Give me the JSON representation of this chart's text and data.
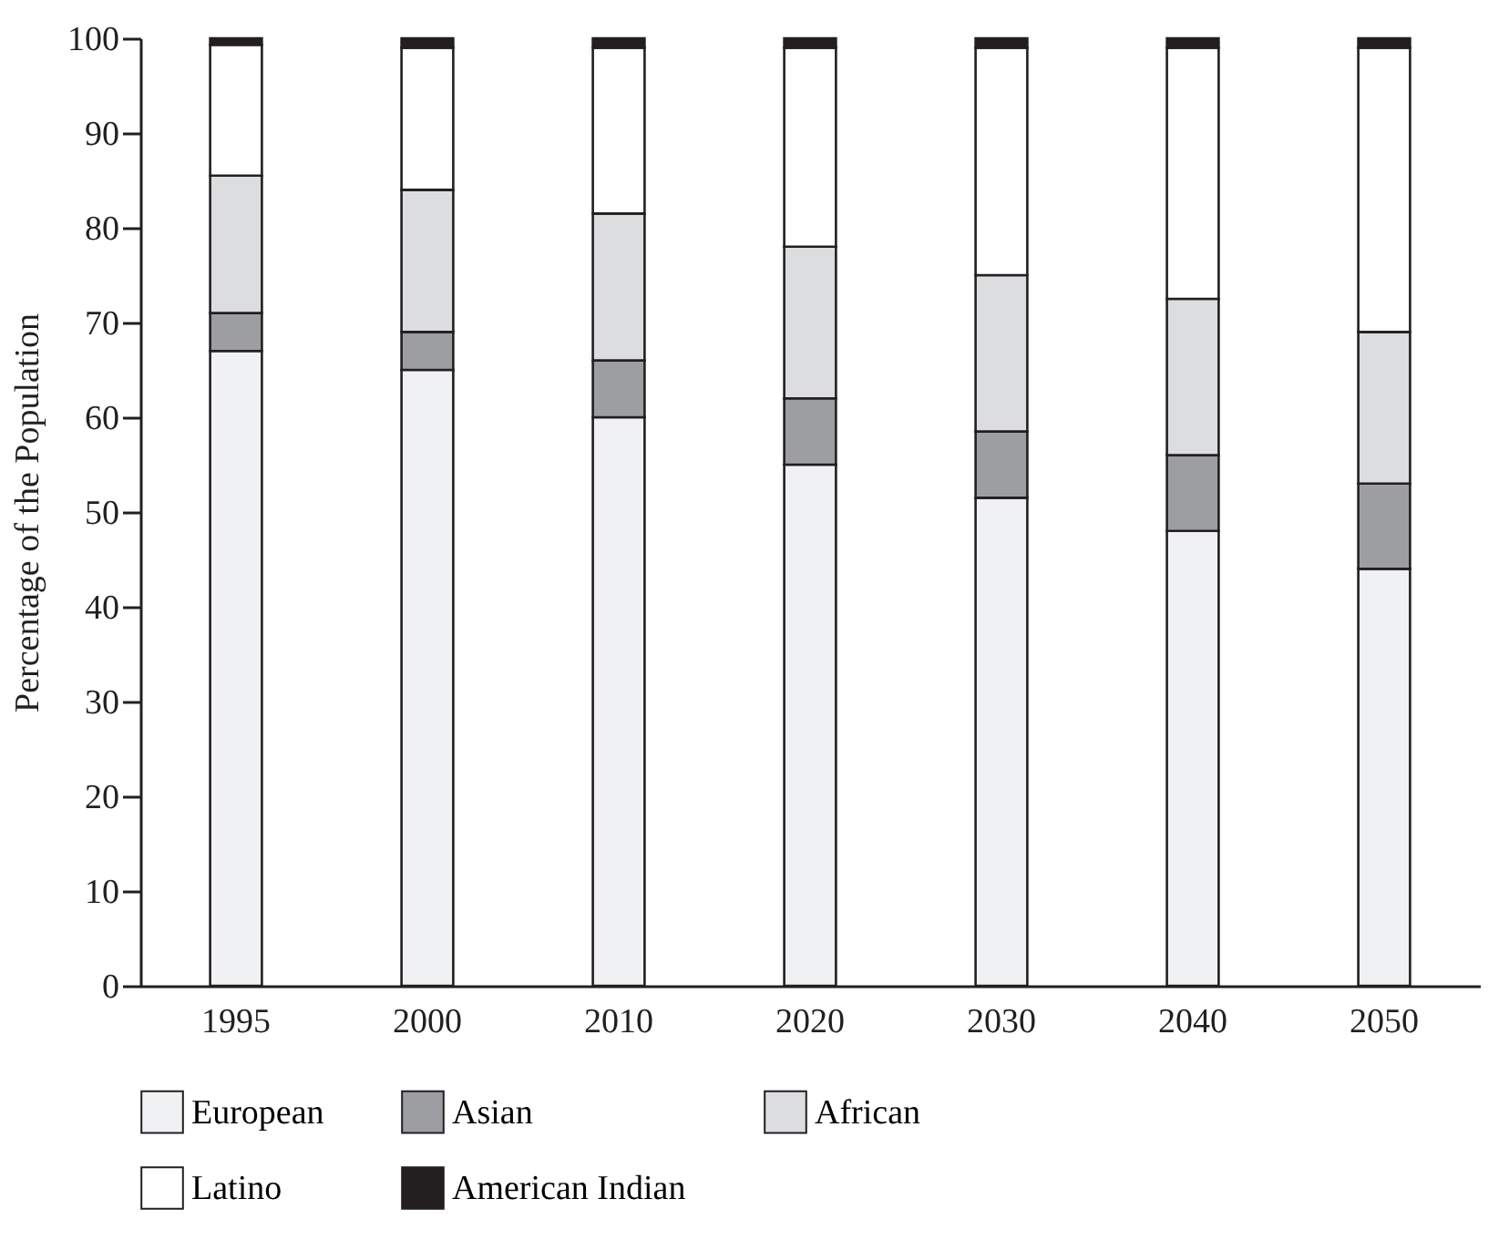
{
  "chart_data": {
    "type": "bar",
    "stacked": true,
    "ylabel": "Percentage of the Population",
    "categories": [
      "1995",
      "2000",
      "2010",
      "2020",
      "2030",
      "2040",
      "2050"
    ],
    "ylim": [
      0,
      100
    ],
    "yticks": [
      0,
      10,
      20,
      30,
      40,
      50,
      60,
      70,
      80,
      90,
      100
    ],
    "grid": false,
    "legend": "bottom",
    "series": [
      {
        "name": "European",
        "color": "#f0f1f3",
        "values": [
          67,
          65,
          60,
          55,
          51.5,
          48,
          44
        ]
      },
      {
        "name": "Asian",
        "color": "#9d9ea2",
        "values": [
          4,
          4,
          6,
          7,
          7,
          8,
          9
        ]
      },
      {
        "name": "African",
        "color": "#dcdddf",
        "values": [
          14.5,
          15,
          15.5,
          16,
          16.5,
          16.5,
          16
        ]
      },
      {
        "name": "Latino",
        "color": "#ffffff",
        "values": [
          13.8,
          15,
          17.5,
          21,
          24,
          26.5,
          30
        ]
      },
      {
        "name": "American Indian",
        "color": "#231f20",
        "values": [
          0.7,
          1,
          1,
          1,
          1,
          1,
          1
        ]
      }
    ]
  }
}
